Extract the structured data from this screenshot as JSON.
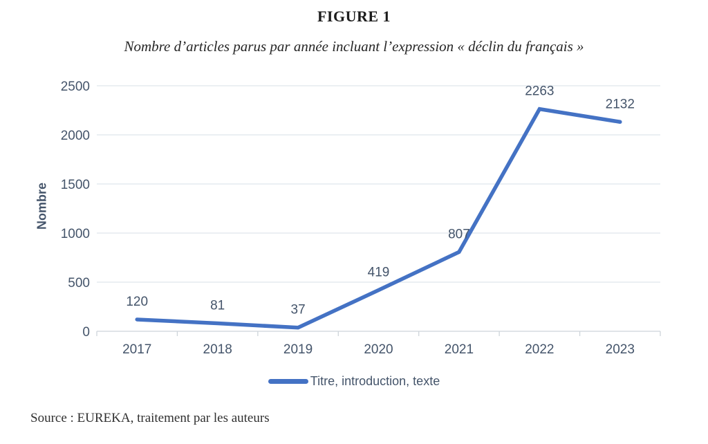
{
  "chart_data": {
    "type": "line",
    "title": "FIGURE 1",
    "subtitle": "Nombre d’articles parus par année incluant l’expression « déclin du français »",
    "categories": [
      "2017",
      "2018",
      "2019",
      "2020",
      "2021",
      "2022",
      "2023"
    ],
    "series": [
      {
        "name": "Titre, introduction, texte",
        "values": [
          120,
          81,
          37,
          419,
          807,
          2263,
          2132
        ]
      }
    ],
    "xlabel": "",
    "ylabel": "Nombre",
    "ylim": [
      0,
      2500
    ],
    "ytick_step": 500,
    "yticks": [
      "0",
      "500",
      "1000",
      "1500",
      "2000",
      "2500"
    ],
    "grid": true,
    "data_labels": true,
    "legend_position": "bottom",
    "colors": {
      "line": "#4472C4",
      "text": "#44546A",
      "gridline": "#dfe5ec",
      "axis": "#ced4da",
      "title": "#1c1c1c"
    }
  },
  "source_note": "Source : EUREKA, traitement par les auteurs"
}
